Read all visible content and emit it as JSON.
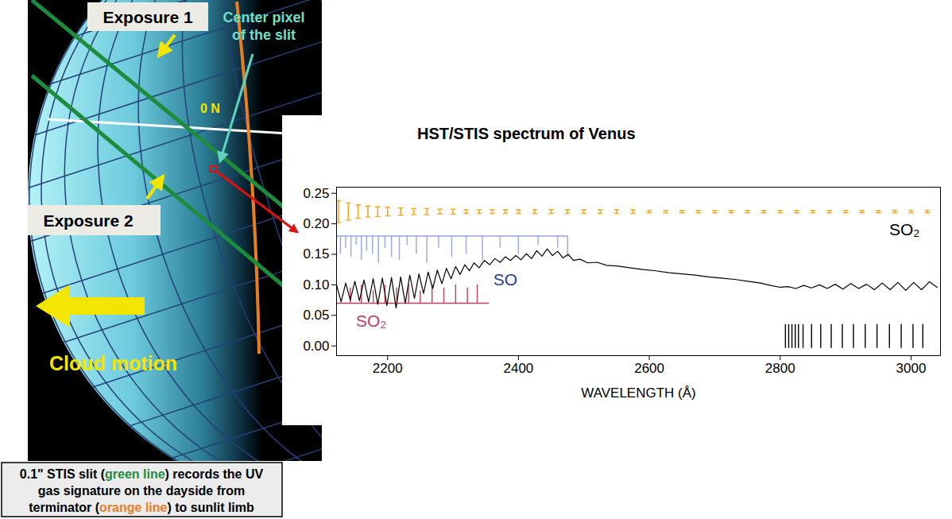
{
  "diagram": {
    "labels": {
      "exposure_1": "Exposure 1",
      "exposure_2": "Exposure 2",
      "equator": "0 N",
      "center_pixel": [
        "Center pixel",
        "of the slit"
      ],
      "cloud_motion": "Cloud motion"
    },
    "caption": [
      [
        {
          "text": "0.1\" STIS slit ("
        },
        {
          "text": "green line",
          "color": "#1d8c3c"
        },
        {
          "text": ") records the UV"
        }
      ],
      [
        {
          "text": "gas signature  on the dayside from"
        }
      ],
      [
        {
          "text": "terminator ("
        },
        {
          "text": "orange line",
          "color": "#e87f1e"
        },
        {
          "text": ") to sunlit limb"
        }
      ]
    ]
  },
  "chart_data": {
    "type": "line",
    "title": "HST/STIS spectrum of Venus",
    "x_label": "WAVELENGTH (Å)",
    "xlim": [
      2122,
      3045
    ],
    "xticks": [
      2200,
      2400,
      2600,
      2800,
      3000
    ],
    "ylim": [
      -0.016,
      0.26
    ],
    "yticks": [
      {
        "value": 0,
        "label": "0.00"
      },
      {
        "value": 0.05,
        "label": "0.05"
      },
      {
        "value": 0.1,
        "label": "0.10"
      },
      {
        "value": 0.15,
        "label": "0.15"
      },
      {
        "value": 0.2,
        "label": "0.20"
      },
      {
        "value": 0.25,
        "label": "0.25"
      }
    ],
    "color": "#000000",
    "x": [
      2122,
      2129,
      2136,
      2143,
      2150,
      2157,
      2164,
      2171,
      2178,
      2185,
      2192,
      2199,
      2206,
      2213,
      2220,
      2227,
      2234,
      2241,
      2248,
      2255,
      2262,
      2269,
      2276,
      2283,
      2290,
      2297,
      2304,
      2311,
      2318,
      2325,
      2332,
      2340,
      2348,
      2356,
      2364,
      2372,
      2380,
      2388,
      2396,
      2404,
      2412,
      2420,
      2428,
      2436,
      2444,
      2452,
      2460,
      2468,
      2476,
      2484,
      2494,
      2506,
      2520,
      2535,
      2550,
      2570,
      2590,
      2610,
      2630,
      2650,
      2670,
      2690,
      2710,
      2730,
      2750,
      2770,
      2785,
      2800,
      2812,
      2824,
      2836,
      2848,
      2860,
      2872,
      2884,
      2896,
      2908,
      2920,
      2932,
      2944,
      2956,
      2968,
      2980,
      2992,
      3004,
      3016,
      3028,
      3040
    ],
    "values": [
      0.1,
      0.072,
      0.103,
      0.075,
      0.106,
      0.074,
      0.108,
      0.072,
      0.11,
      0.068,
      0.111,
      0.066,
      0.112,
      0.062,
      0.113,
      0.07,
      0.116,
      0.078,
      0.118,
      0.086,
      0.121,
      0.094,
      0.124,
      0.102,
      0.127,
      0.11,
      0.13,
      0.117,
      0.133,
      0.123,
      0.136,
      0.128,
      0.14,
      0.133,
      0.143,
      0.137,
      0.146,
      0.14,
      0.148,
      0.141,
      0.151,
      0.143,
      0.156,
      0.147,
      0.159,
      0.148,
      0.155,
      0.144,
      0.15,
      0.14,
      0.142,
      0.136,
      0.137,
      0.132,
      0.131,
      0.128,
      0.125,
      0.123,
      0.12,
      0.118,
      0.116,
      0.113,
      0.111,
      0.109,
      0.106,
      0.103,
      0.099,
      0.096,
      0.097,
      0.094,
      0.099,
      0.095,
      0.1,
      0.094,
      0.101,
      0.093,
      0.102,
      0.094,
      0.101,
      0.092,
      0.103,
      0.092,
      0.104,
      0.091,
      0.104,
      0.092,
      0.105,
      0.096
    ],
    "error_bars": {
      "color": "#f5a623",
      "x": [
        2125,
        2140,
        2155,
        2170,
        2185,
        2200,
        2220,
        2240,
        2260,
        2280,
        2300,
        2320,
        2340,
        2360,
        2380,
        2400,
        2425,
        2450,
        2475,
        2500,
        2525,
        2550,
        2575,
        2600,
        2625,
        2650,
        2675,
        2700,
        2725,
        2750,
        2775,
        2800,
        2825,
        2850,
        2875,
        2900,
        2925,
        2950,
        2975,
        3000,
        3025
      ],
      "values": [
        0.22,
        0.22,
        0.22,
        0.22,
        0.22,
        0.22,
        0.22,
        0.22,
        0.22,
        0.22,
        0.22,
        0.22,
        0.22,
        0.22,
        0.22,
        0.22,
        0.22,
        0.22,
        0.22,
        0.22,
        0.22,
        0.22,
        0.22,
        0.22,
        0.22,
        0.22,
        0.22,
        0.22,
        0.22,
        0.22,
        0.22,
        0.22,
        0.22,
        0.22,
        0.22,
        0.22,
        0.22,
        0.22,
        0.22,
        0.22,
        0.22
      ],
      "error": [
        0.018,
        0.014,
        0.011,
        0.009,
        0.008,
        0.007,
        0.006,
        0.005,
        0.005,
        0.004,
        0.004,
        0.003,
        0.003,
        0.003,
        0.003,
        0.003,
        0.003,
        0.003,
        0.003,
        0.003,
        0.003,
        0.003,
        0.003,
        0.002,
        0.002,
        0.002,
        0.002,
        0.002,
        0.002,
        0.002,
        0.002,
        0.002,
        0.002,
        0.002,
        0.002,
        0.002,
        0.002,
        0.002,
        0.002,
        0.002,
        0.002
      ]
    },
    "line_lists": [
      {
        "label": "SO",
        "color": "#9aa4e6",
        "x": [
          2128,
          2136,
          2144,
          2152,
          2160,
          2168,
          2177,
          2186,
          2196,
          2206,
          2218,
          2230,
          2244,
          2260,
          2278,
          2298,
          2320,
          2345,
          2372,
          2400,
          2430,
          2460,
          2475
        ],
        "y1": 0.18,
        "y2": [
          0.15,
          0.16,
          0.145,
          0.165,
          0.14,
          0.155,
          0.15,
          0.135,
          0.16,
          0.145,
          0.14,
          0.165,
          0.15,
          0.135,
          0.16,
          0.145,
          0.15,
          0.14,
          0.16,
          0.15,
          0.165,
          0.16,
          0.145
        ],
        "bracket": {
          "x1": 2122,
          "x2": 2475,
          "y": 0.18
        }
      },
      {
        "label": "SO₂",
        "color": "#c0405a",
        "x": [
          2143,
          2160,
          2178,
          2196,
          2214,
          2232,
          2250,
          2268,
          2286,
          2304,
          2322,
          2337
        ],
        "y1": 0.07,
        "y2": [
          0.095,
          0.1,
          0.09,
          0.1,
          0.095,
          0.1,
          0.09,
          0.1,
          0.095,
          0.1,
          0.095,
          0.1
        ],
        "bracket": {
          "x1": 2122,
          "x2": 2355,
          "y": 0.07
        }
      },
      {
        "label": "SO₂",
        "color": "#000000",
        "x": [
          2808,
          2813,
          2818,
          2823,
          2828,
          2835,
          2848,
          2862,
          2878,
          2895,
          2912,
          2930,
          2948,
          2967,
          2985,
          3003,
          3018
        ],
        "y1": -0.004,
        "y2": 0.035
      }
    ]
  }
}
